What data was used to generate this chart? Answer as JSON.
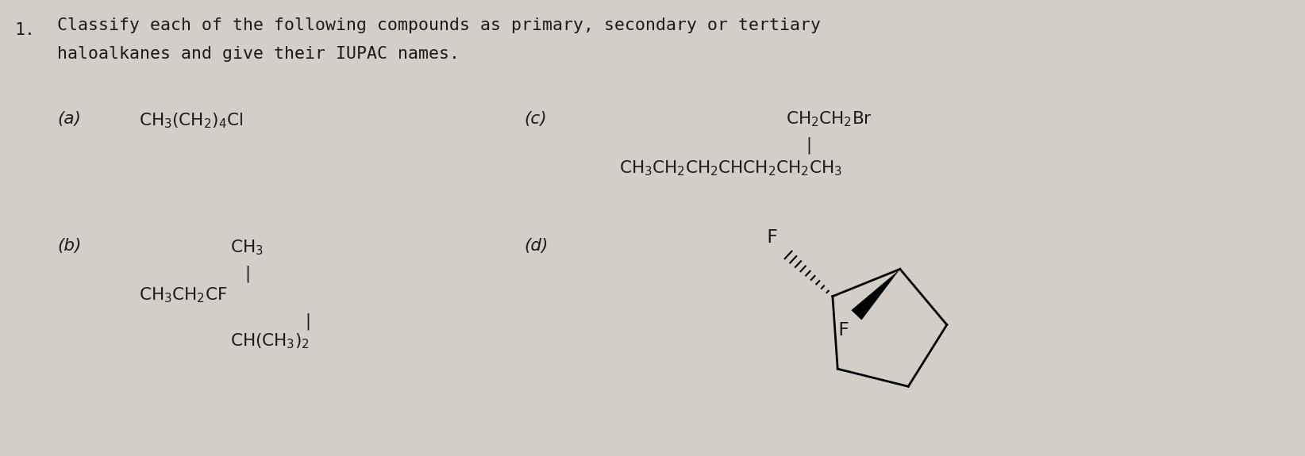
{
  "bg_color": "#d3cec7",
  "text_color": "#1a1a1a",
  "question_number": "1.",
  "title_line1": "Classify each of the following compounds as primary, secondary or tertiary",
  "title_line2": "haloalkanes and give their IUPAC names.",
  "label_a": "(a)",
  "label_b": "(b)",
  "label_c": "(c)",
  "label_d": "(d)",
  "fs_title": 15.5,
  "fs_label": 15.5,
  "fs_chem": 15.5
}
